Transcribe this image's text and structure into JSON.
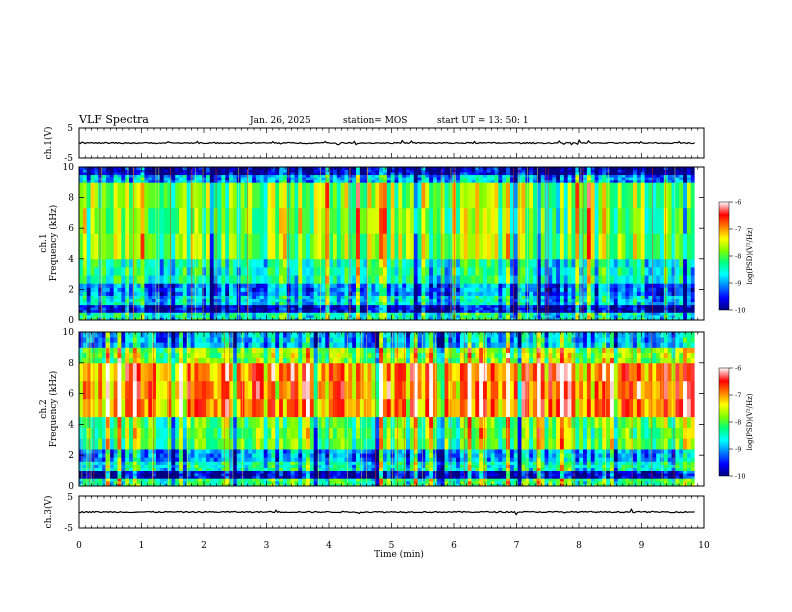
{
  "header": {
    "title": "VLF Spectra",
    "date": "Jan. 26, 2025",
    "station": "station= MOS",
    "start_ut": "start UT =   13: 50: 1"
  },
  "panels": {
    "ch1_waveform": {
      "ylabel": "ch.1(V)",
      "yticks": [
        "5",
        "-5"
      ]
    },
    "ch1_spectrogram": {
      "ylabel_top": "ch.1",
      "ylabel": "Frequency (kHz)",
      "yticks": [
        "0",
        "2",
        "4",
        "6",
        "8",
        "10"
      ]
    },
    "ch2_spectrogram": {
      "ylabel_top": "ch.2",
      "ylabel": "Frequency (kHz)",
      "yticks": [
        "0",
        "2",
        "4",
        "6",
        "8",
        "10"
      ]
    },
    "ch3_waveform": {
      "ylabel": "ch.3(V)",
      "yticks": [
        "5",
        "-5"
      ]
    }
  },
  "colorbar": {
    "label": "log(PSD)(V²/Hz)",
    "ticks": [
      "-6",
      "-7",
      "-8",
      "-9",
      "-10"
    ],
    "colors": [
      "#000080",
      "#0000ff",
      "#0080ff",
      "#00ffff",
      "#00ff80",
      "#80ff00",
      "#ffff00",
      "#ff8000",
      "#ff0000",
      "#ffffff"
    ]
  },
  "xaxis": {
    "label": "Time (min)",
    "ticks": [
      "0",
      "1",
      "2",
      "3",
      "4",
      "5",
      "6",
      "7",
      "8",
      "9",
      "10"
    ]
  },
  "chart_data": [
    {
      "type": "line",
      "name": "ch1-waveform",
      "xlim": [
        0,
        10
      ],
      "ylim": [
        -5,
        5
      ],
      "baseline": 0,
      "data_end": 9.85
    },
    {
      "type": "heatmap",
      "name": "ch1-spectrogram",
      "xlim": [
        0,
        10
      ],
      "ylim": [
        0,
        10
      ],
      "data_end": 9.85,
      "band_psd": [
        {
          "freq_khz": [
            0,
            0.5
          ],
          "log_psd": -8.5
        },
        {
          "freq_khz": [
            0.5,
            1.0
          ],
          "log_psd": -9.8
        },
        {
          "freq_khz": [
            1.0,
            1.6
          ],
          "log_psd": -8.8
        },
        {
          "freq_khz": [
            1.6,
            2.4
          ],
          "log_psd": -9.2
        },
        {
          "freq_khz": [
            2.4,
            4.0
          ],
          "log_psd": -8.5
        },
        {
          "freq_khz": [
            4.0,
            9.0
          ],
          "log_psd": -7.9
        },
        {
          "freq_khz": [
            9.0,
            9.5
          ],
          "log_psd": -9.0
        },
        {
          "freq_khz": [
            9.5,
            10
          ],
          "log_psd": -9.9
        }
      ]
    },
    {
      "type": "heatmap",
      "name": "ch2-spectrogram",
      "xlim": [
        0,
        10
      ],
      "ylim": [
        0,
        10
      ],
      "data_end": 9.85,
      "band_psd": [
        {
          "freq_khz": [
            0,
            0.5
          ],
          "log_psd": -8.2
        },
        {
          "freq_khz": [
            0.5,
            1.0
          ],
          "log_psd": -9.8
        },
        {
          "freq_khz": [
            1.0,
            1.6
          ],
          "log_psd": -8.5
        },
        {
          "freq_khz": [
            1.6,
            2.4
          ],
          "log_psd": -9.0
        },
        {
          "freq_khz": [
            2.4,
            4.5
          ],
          "log_psd": -8.0
        },
        {
          "freq_khz": [
            4.5,
            8.0
          ],
          "log_psd": -6.9
        },
        {
          "freq_khz": [
            8.0,
            9.0
          ],
          "log_psd": -7.8
        },
        {
          "freq_khz": [
            9.0,
            10
          ],
          "log_psd": -8.9
        }
      ]
    },
    {
      "type": "line",
      "name": "ch3-waveform",
      "xlim": [
        0,
        10
      ],
      "ylim": [
        -5,
        5
      ],
      "baseline": 0,
      "data_end": 9.85
    }
  ]
}
